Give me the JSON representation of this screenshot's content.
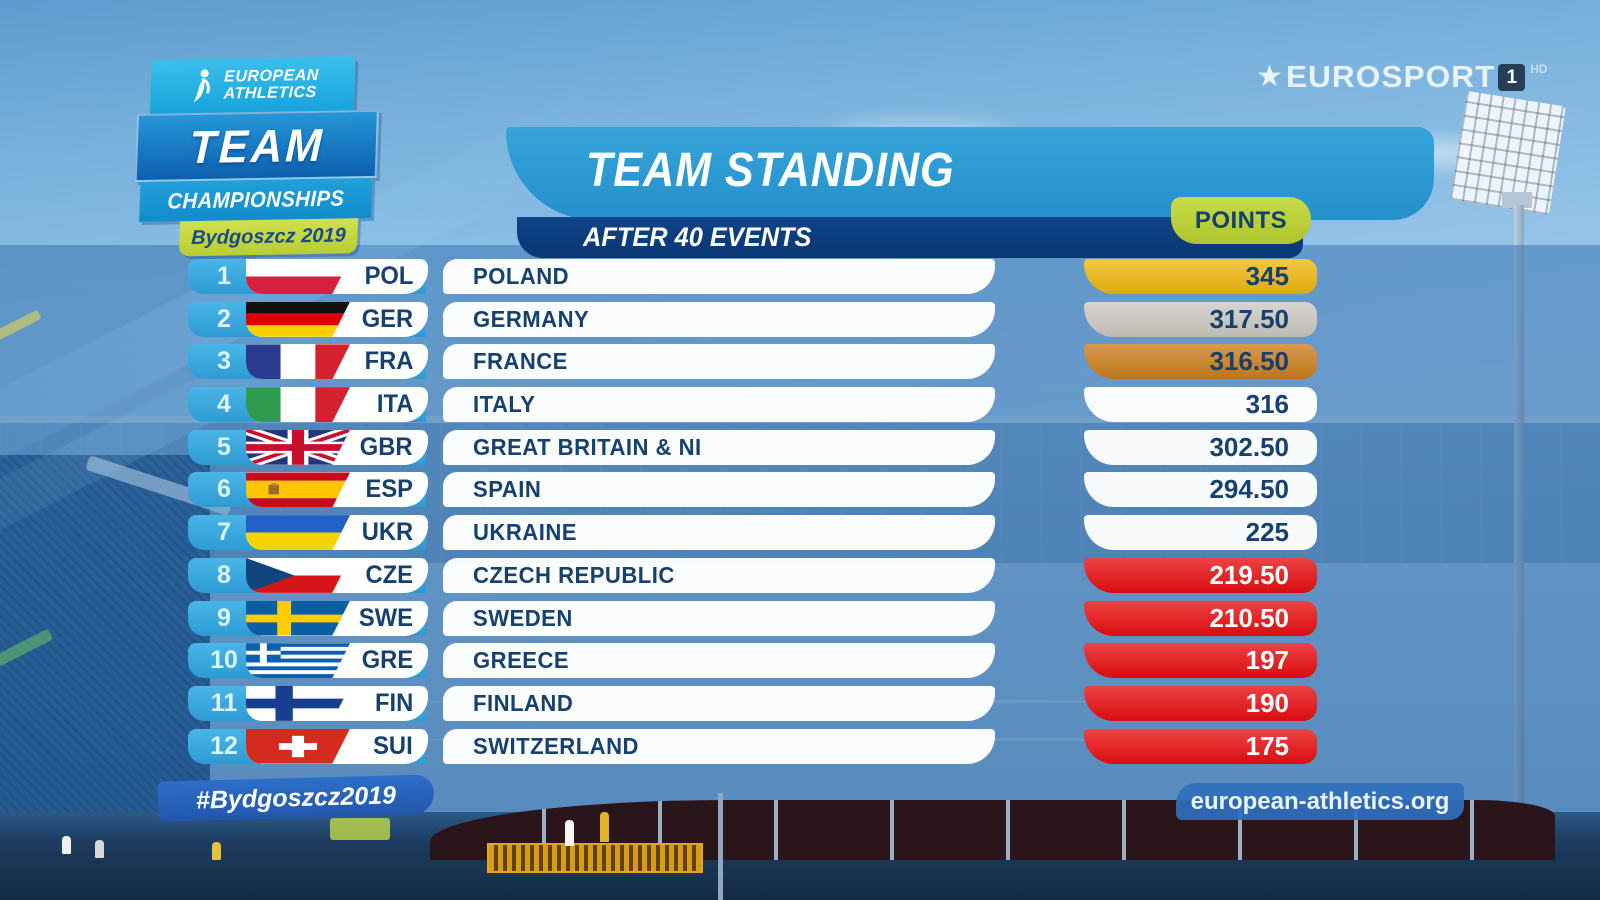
{
  "broadcaster": {
    "name": "EUROSPORT",
    "channel": "1",
    "quality": "HD",
    "star_icon": "★"
  },
  "event_logo": {
    "org_line1": "EUROPEAN",
    "org_line2": "ATHLETICS",
    "title": "TEAM",
    "subtitle": "CHAMPIONSHIPS",
    "edition": "Bydgoszcz 2019"
  },
  "header": {
    "title": "TEAM STANDING",
    "subtitle": "AFTER 40 EVENTS",
    "points_label": "POINTS"
  },
  "standings": [
    {
      "rank": "1",
      "code": "POL",
      "country": "POLAND",
      "points": "345",
      "tier": "gold"
    },
    {
      "rank": "2",
      "code": "GER",
      "country": "GERMANY",
      "points": "317.50",
      "tier": "silver"
    },
    {
      "rank": "3",
      "code": "FRA",
      "country": "FRANCE",
      "points": "316.50",
      "tier": "bronze"
    },
    {
      "rank": "4",
      "code": "ITA",
      "country": "ITALY",
      "points": "316",
      "tier": "white"
    },
    {
      "rank": "5",
      "code": "GBR",
      "country": "GREAT BRITAIN & NI",
      "points": "302.50",
      "tier": "white"
    },
    {
      "rank": "6",
      "code": "ESP",
      "country": "SPAIN",
      "points": "294.50",
      "tier": "white"
    },
    {
      "rank": "7",
      "code": "UKR",
      "country": "UKRAINE",
      "points": "225",
      "tier": "white"
    },
    {
      "rank": "8",
      "code": "CZE",
      "country": "CZECH REPUBLIC",
      "points": "219.50",
      "tier": "red"
    },
    {
      "rank": "9",
      "code": "SWE",
      "country": "SWEDEN",
      "points": "210.50",
      "tier": "red"
    },
    {
      "rank": "10",
      "code": "GRE",
      "country": "GREECE",
      "points": "197",
      "tier": "red"
    },
    {
      "rank": "11",
      "code": "FIN",
      "country": "FINLAND",
      "points": "190",
      "tier": "red"
    },
    {
      "rank": "12",
      "code": "SUI",
      "country": "SWITZERLAND",
      "points": "175",
      "tier": "red"
    }
  ],
  "footer": {
    "hashtag": "#Bydgoszcz2019",
    "website": "european-athletics.org"
  },
  "colors": {
    "gold": "#efb70f",
    "silver": "#ccc9c2",
    "bronze": "#cd7e1d",
    "red": "#e90d10",
    "pill_white": "#ffffff",
    "navy_text": "#16406e",
    "rank_bar": "#2d9bd4",
    "header_blue": "#2b9fd6",
    "header_navy": "#0c3a7c",
    "points_green": "#aec52e",
    "footer_blue": "#2257ab"
  }
}
